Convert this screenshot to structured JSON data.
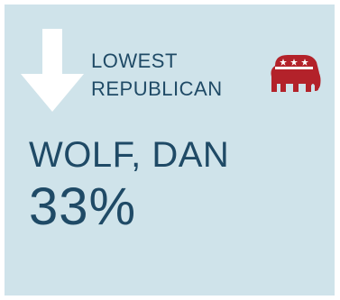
{
  "card": {
    "heading_line1": "LOWEST",
    "heading_line2": "REPUBLICAN",
    "candidate_name": "WOLF, DAN",
    "percentage": "33%",
    "indicator_icon": "arrow-down-icon",
    "party_icon": "republican-elephant-icon"
  },
  "colors": {
    "background": "#cfe3ea",
    "text": "#1f4a66",
    "arrow": "#ffffff",
    "elephant": "#b3222a"
  }
}
